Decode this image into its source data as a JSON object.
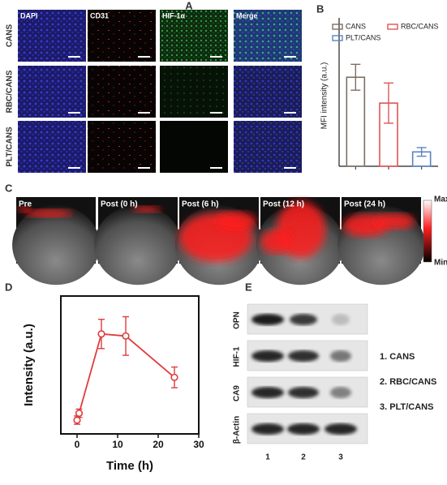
{
  "panel_labels": [
    "A",
    "B",
    "C",
    "D",
    "E"
  ],
  "panel_a": {
    "columns": [
      "DAPI",
      "CD31",
      "HIF-1α",
      "Merge"
    ],
    "rows": [
      "CANS",
      "RBC/CANS",
      "PLT/CANS"
    ]
  },
  "panel_c": {
    "timepoints": [
      "Pre",
      "Post (0 h)",
      "Post (6 h)",
      "Post (12 h)",
      "Post (24 h)"
    ],
    "colorbar": {
      "max": "Max",
      "min": "Min"
    }
  },
  "panel_e": {
    "proteins": [
      "OPN",
      "HIF-1",
      "CA9",
      "β-Actin"
    ],
    "lanes": [
      "1",
      "2",
      "3"
    ],
    "legend": [
      "1. CANS",
      "2. RBC/CANS",
      "3. PLT/CANS"
    ]
  },
  "chart_data": [
    {
      "type": "bar",
      "ylabel": "MFI intensity (a.u.)",
      "categories": [
        null,
        null,
        null
      ],
      "ylim": [
        0,
        100
      ],
      "series": [
        {
          "name": "CANS",
          "color": "#7d6e62",
          "values": [
            62,
            null,
            null
          ],
          "errors": [
            9,
            null,
            null
          ]
        },
        {
          "name": "RBC/CANS",
          "color": "#e05555",
          "values": [
            null,
            44,
            null
          ],
          "errors": [
            null,
            14,
            null
          ]
        },
        {
          "name": "PLT/CANS",
          "color": "#5b82c4",
          "values": [
            null,
            null,
            10
          ],
          "errors": [
            null,
            null,
            3
          ]
        }
      ]
    },
    {
      "type": "line",
      "xlabel": "Time (h)",
      "ylabel": "Intensity (a.u.)",
      "x": [
        0,
        0.5,
        6,
        12,
        24
      ],
      "values": [
        10,
        15,
        72.5,
        71,
        41
      ],
      "errors": [
        3,
        3,
        10.6,
        14,
        7.5
      ],
      "color": "#e03c3c",
      "xlim": [
        -4,
        30
      ],
      "xticks": [
        0,
        10,
        20,
        30
      ],
      "ylim": [
        0,
        100
      ]
    }
  ]
}
